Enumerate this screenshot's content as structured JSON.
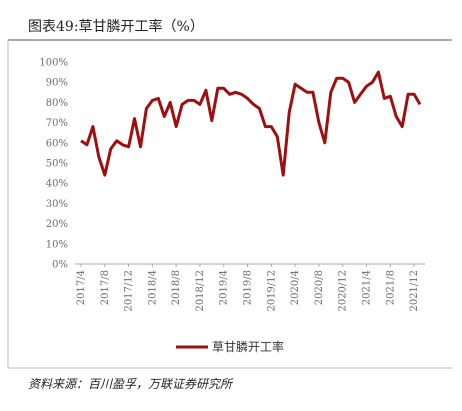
{
  "chart_data": {
    "type": "line",
    "title": "图表49:草甘膦开工率（%）",
    "source": "资料来源：百川盈孚，万联证券研究所",
    "categories": [
      "2017/4",
      null,
      null,
      null,
      "2017/8",
      null,
      null,
      null,
      "2017/12",
      null,
      null,
      null,
      "2018/4",
      null,
      null,
      null,
      "2018/8",
      null,
      null,
      null,
      "2018/12",
      null,
      null,
      null,
      "2019/4",
      null,
      null,
      null,
      "2019/8",
      null,
      null,
      null,
      "2019/12",
      null,
      null,
      null,
      "2020/4",
      null,
      null,
      null,
      "2020/8",
      null,
      null,
      null,
      "2020/12",
      null,
      null,
      null,
      "2021/4",
      null,
      null,
      null,
      "2021/8",
      null,
      null,
      null,
      "2021/12",
      null
    ],
    "series": [
      {
        "name": "草甘膦开工率",
        "color": "#9e0f10",
        "values": [
          61,
          59,
          68,
          53,
          44,
          57,
          61,
          59,
          58,
          72,
          58,
          77,
          81,
          82,
          73,
          80,
          68,
          79,
          81,
          81,
          79,
          86,
          71,
          87,
          87,
          84,
          85,
          84,
          82,
          79,
          77,
          68,
          68,
          63,
          44,
          75,
          89,
          87,
          85,
          85,
          70,
          60,
          85,
          92,
          92,
          90,
          80,
          84,
          88,
          90,
          95,
          82,
          83,
          73,
          68,
          84,
          84,
          79
        ]
      }
    ],
    "ylim": [
      0,
      100
    ],
    "yticks": [
      {
        "value": 0,
        "label": "0%"
      },
      {
        "value": 10,
        "label": "10%"
      },
      {
        "value": 20,
        "label": "20%"
      },
      {
        "value": 30,
        "label": "30%"
      },
      {
        "value": 40,
        "label": "40%"
      },
      {
        "value": 50,
        "label": "50%"
      },
      {
        "value": 60,
        "label": "60%"
      },
      {
        "value": 70,
        "label": "70%"
      },
      {
        "value": 80,
        "label": "80%"
      },
      {
        "value": 90,
        "label": "90%"
      },
      {
        "value": 100,
        "label": "100%"
      }
    ],
    "grid": false
  }
}
